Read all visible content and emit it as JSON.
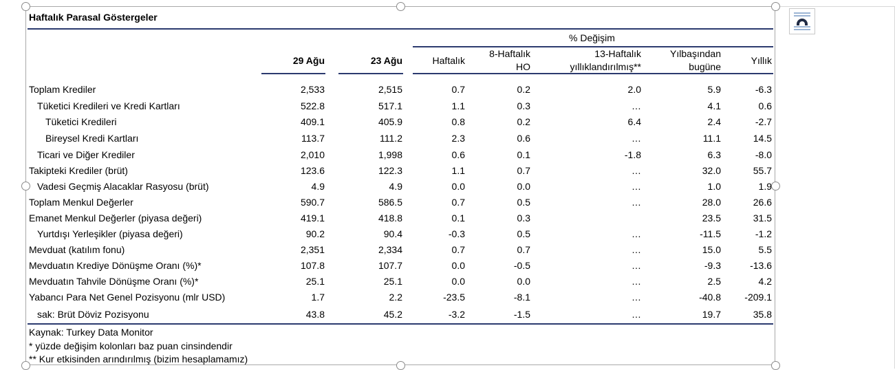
{
  "table": {
    "title": "Haftalık Parasal Göstergeler",
    "pct_change_header": "% Değişim",
    "columns": [
      {
        "key": "c1",
        "label_lines": [
          "29 Ağu"
        ],
        "bold": true
      },
      {
        "key": "c2",
        "label_lines": [
          "23 Ağu"
        ],
        "bold": true
      },
      {
        "key": "c3",
        "label_lines": [
          "Haftalık"
        ],
        "bold": false
      },
      {
        "key": "c4",
        "label_lines": [
          "8-Haftalık",
          "HO"
        ],
        "bold": false
      },
      {
        "key": "c5",
        "label_lines": [
          "13-Haftalık",
          "yıllıklandırılmış**"
        ],
        "bold": false
      },
      {
        "key": "c6",
        "label_lines": [
          "Yılbaşından",
          "bugüne"
        ],
        "bold": false
      },
      {
        "key": "c7",
        "label_lines": [
          "Yıllık"
        ],
        "bold": false
      }
    ],
    "rows": [
      {
        "label": "Toplam Krediler",
        "indent": 0,
        "values": [
          "2,533",
          "2,515",
          "0.7",
          "0.2",
          "2.0",
          "5.9",
          "-6.3"
        ]
      },
      {
        "label": "Tüketici Kredileri ve Kredi Kartları",
        "indent": 1,
        "values": [
          "522.8",
          "517.1",
          "1.1",
          "0.3",
          "…",
          "4.1",
          "0.6"
        ]
      },
      {
        "label": "Tüketici Kredileri",
        "indent": 2,
        "values": [
          "409.1",
          "405.9",
          "0.8",
          "0.2",
          "6.4",
          "2.4",
          "-2.7"
        ]
      },
      {
        "label": "Bireysel Kredi Kartları",
        "indent": 2,
        "values": [
          "113.7",
          "111.2",
          "2.3",
          "0.6",
          "…",
          "11.1",
          "14.5"
        ]
      },
      {
        "label": "Ticari ve Diğer Krediler",
        "indent": 1,
        "values": [
          "2,010",
          "1,998",
          "0.6",
          "0.1",
          "-1.8",
          "6.3",
          "-8.0"
        ]
      },
      {
        "label": "Takipteki Krediler (brüt)",
        "indent": 0,
        "values": [
          "123.6",
          "122.3",
          "1.1",
          "0.7",
          "…",
          "32.0",
          "55.7"
        ]
      },
      {
        "label": "Vadesi Geçmiş Alacaklar Rasyosu (brüt)",
        "indent": 1,
        "values": [
          "4.9",
          "4.9",
          "0.0",
          "0.0",
          "…",
          "1.0",
          "1.9"
        ]
      },
      {
        "label": "Toplam Menkul Değerler",
        "indent": 0,
        "values": [
          "590.7",
          "586.5",
          "0.7",
          "0.5",
          "…",
          "28.0",
          "26.6"
        ]
      },
      {
        "label": "Emanet Menkul Değerler (piyasa değeri)",
        "indent": 0,
        "values": [
          "419.1",
          "418.8",
          "0.1",
          "0.3",
          "",
          "23.5",
          "31.5"
        ]
      },
      {
        "label": "Yurtdışı Yerleşikler (piyasa değeri)",
        "indent": 1,
        "values": [
          "90.2",
          "90.4",
          "-0.3",
          "0.5",
          "…",
          "-11.5",
          "-1.2"
        ]
      },
      {
        "label": "Mevduat (katılım fonu)",
        "indent": 0,
        "values": [
          "2,351",
          "2,334",
          "0.7",
          "0.7",
          "…",
          "15.0",
          "5.5"
        ]
      },
      {
        "label": "Mevduatın Krediye Dönüşme Oranı (%)*",
        "indent": 0,
        "values": [
          "107.8",
          "107.7",
          "0.0",
          "-0.5",
          "…",
          "-9.3",
          "-13.6"
        ]
      },
      {
        "label": "Mevduatın Tahvile Dönüşme Oranı (%)*",
        "indent": 0,
        "values": [
          "25.1",
          "25.1",
          "0.0",
          "0.0",
          "…",
          "2.5",
          "4.2"
        ]
      },
      {
        "label": "Yabancı Para Net Genel Pozisyonu (mlr USD)",
        "indent": 0,
        "values": [
          "1.7",
          "2.2",
          "-23.5",
          "-8.1",
          "…",
          "-40.8",
          "-209.1"
        ]
      },
      {
        "label": "sak: Brüt Döviz Pozisyonu",
        "indent": 1,
        "values": [
          "43.8",
          "45.2",
          "-3.2",
          "-1.5",
          "…",
          "19.7",
          "35.8"
        ]
      }
    ],
    "footnotes": [
      "Kaynak: Turkey Data Monitor",
      "* yüzde değişim kolonları baz puan cinsindendir",
      "** Kur etkisinden arındırılmış (bizim hesaplamamız)"
    ]
  },
  "toolbar": {
    "layout_options_icon": "layout-options-icon"
  },
  "colors": {
    "rule": "#2b3a6e",
    "handle_border": "#8a8a8a",
    "frame": "#a9a9a9"
  }
}
